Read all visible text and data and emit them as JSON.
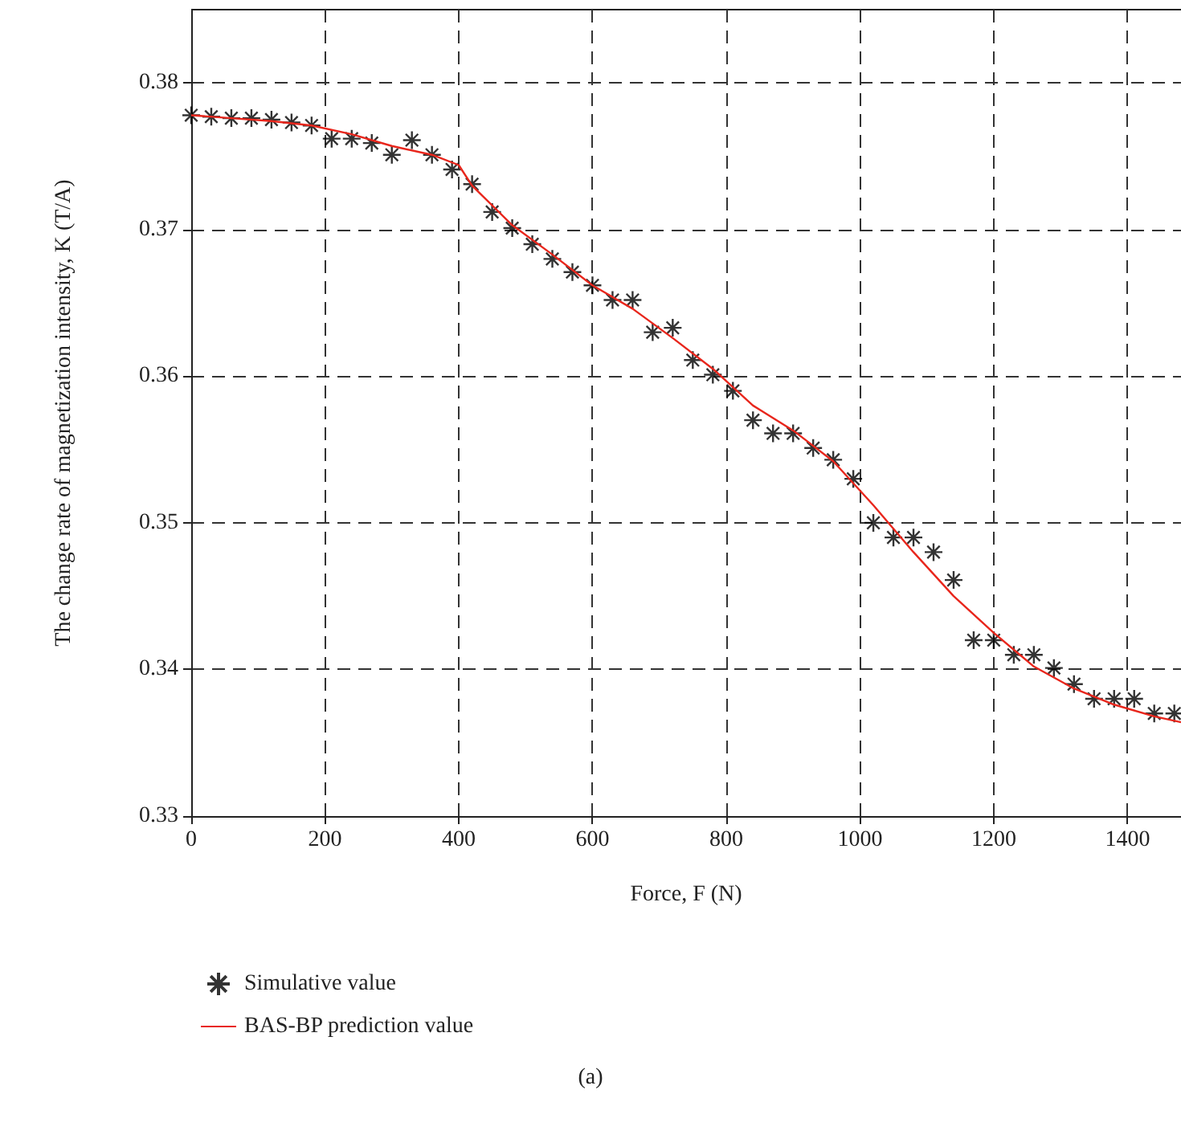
{
  "chart_data": {
    "type": "scatter",
    "xlabel": "Force, F (N)",
    "ylabel": "The change rate of magnetization intensity, K (T/A)",
    "xlim": [
      0,
      1480
    ],
    "ylim": [
      0.33,
      0.385
    ],
    "xticks": [
      0,
      200,
      400,
      600,
      800,
      1000,
      1200,
      1400
    ],
    "yticks": [
      0.33,
      0.34,
      0.35,
      0.36,
      0.37,
      0.38
    ],
    "grid": true,
    "legend": "bottom",
    "annotations": [
      "(a)"
    ],
    "series": [
      {
        "name": "Simulative value",
        "marker": "cross",
        "color": "#000000",
        "x": [
          0,
          30,
          60,
          90,
          120,
          150,
          180,
          210,
          240,
          270,
          300,
          330,
          360,
          390,
          420,
          450,
          480,
          510,
          540,
          570,
          600,
          630,
          660,
          690,
          720,
          750,
          780,
          810,
          840,
          870,
          900,
          930,
          960,
          990,
          1020,
          1050,
          1080,
          1110,
          1140,
          1170,
          1200,
          1230,
          1260,
          1290,
          1320,
          1350,
          1380,
          1410,
          1440,
          1470
        ],
        "values": [
          0.3778,
          0.3777,
          0.3776,
          0.3776,
          0.3775,
          0.3773,
          0.3771,
          0.3762,
          0.3762,
          0.3759,
          0.3751,
          0.3761,
          0.3751,
          0.3741,
          0.3731,
          0.3712,
          0.3701,
          0.369,
          0.368,
          0.3671,
          0.3662,
          0.3652,
          0.3652,
          0.363,
          0.3633,
          0.3611,
          0.3601,
          0.359,
          0.357,
          0.3561,
          0.3561,
          0.3551,
          0.3543,
          0.353,
          0.35,
          0.349,
          0.349,
          0.348,
          0.3461,
          0.342,
          0.342,
          0.341,
          0.341,
          0.3401,
          0.339,
          0.338,
          0.338,
          0.338,
          0.337,
          0.337
        ]
      },
      {
        "name": "BAS-BP prediction value",
        "type": "line",
        "marker": "none",
        "color": "#e8261c",
        "x": [
          0,
          60,
          120,
          180,
          240,
          300,
          360,
          400,
          420,
          480,
          540,
          600,
          660,
          720,
          780,
          840,
          900,
          960,
          1020,
          1080,
          1140,
          1200,
          1260,
          1320,
          1380,
          1440,
          1480
        ],
        "values": [
          0.3778,
          0.3776,
          0.3774,
          0.3771,
          0.3765,
          0.3757,
          0.3751,
          0.3744,
          0.373,
          0.3703,
          0.3683,
          0.3662,
          0.3646,
          0.3626,
          0.3605,
          0.358,
          0.3563,
          0.3542,
          0.3512,
          0.348,
          0.345,
          0.3425,
          0.3402,
          0.3387,
          0.3376,
          0.3368,
          0.3364
        ]
      }
    ]
  }
}
